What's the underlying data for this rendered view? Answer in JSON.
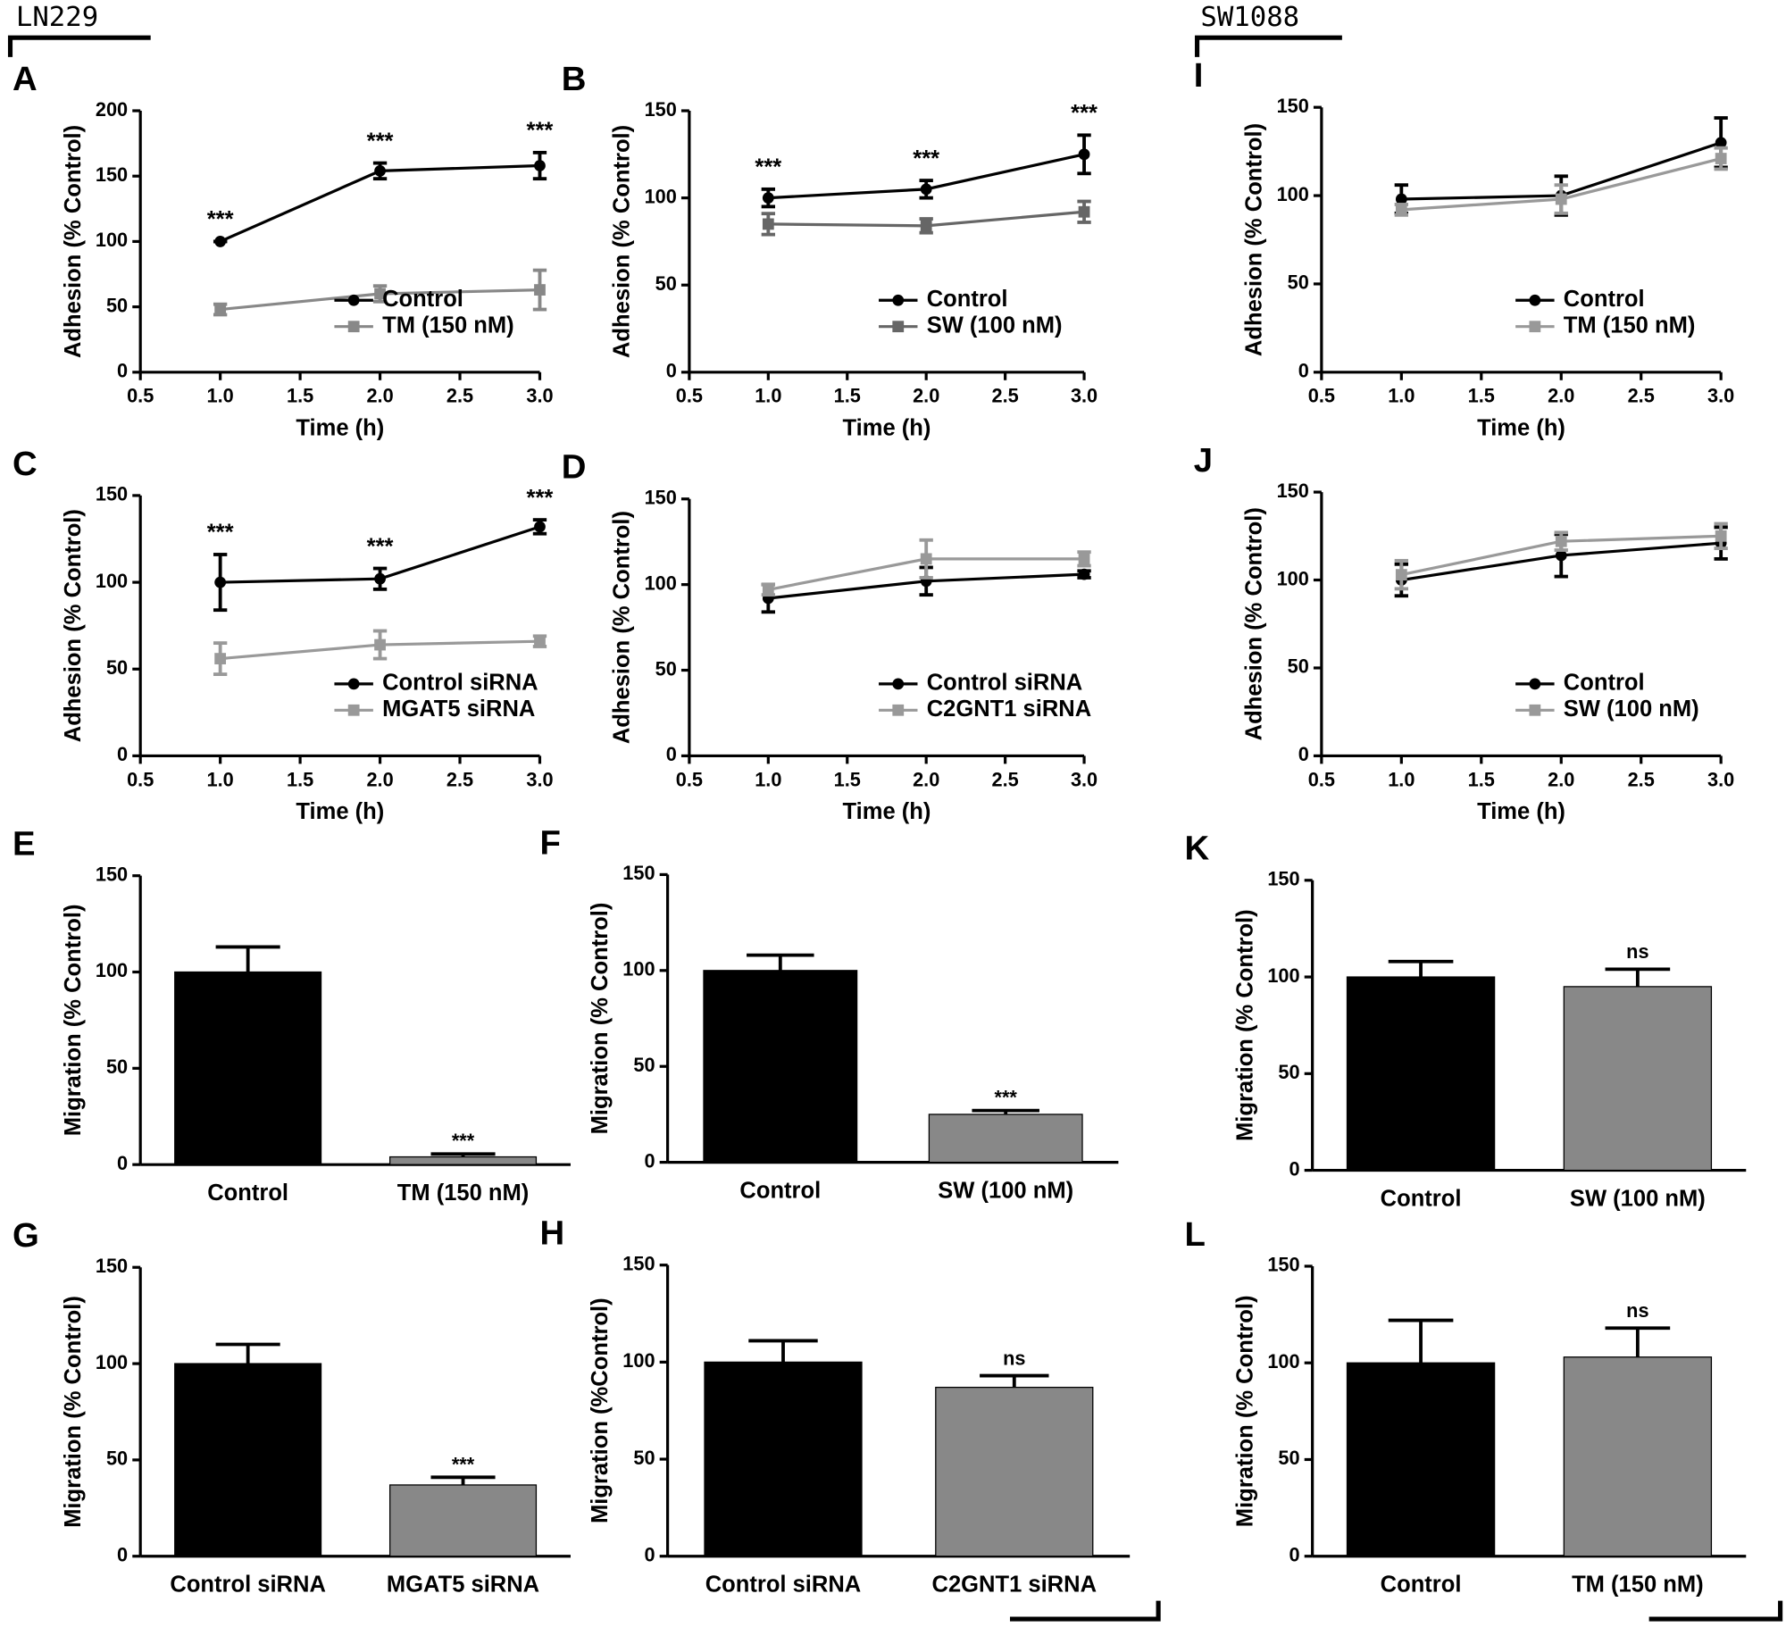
{
  "groups": [
    "LN229",
    "SW1088"
  ],
  "chart_data": [
    {
      "panel": "A",
      "type": "line",
      "xlabel": "Time (h)",
      "ylabel": "Adhesion (% Control)",
      "legend": "lower right",
      "x": [
        1,
        2,
        3
      ],
      "xlim": [
        0.5,
        3
      ],
      "xticks": [
        0.5,
        {
          "value": 1,
          "label": "1.0"
        },
        1.5,
        {
          "value": 2,
          "label": "2.0"
        },
        2.5,
        {
          "value": 3,
          "label": "3.0"
        }
      ],
      "ylim": [
        0,
        200
      ],
      "yticks": [
        0,
        50,
        100,
        150,
        200
      ],
      "annotations": [
        "***",
        "***",
        "***"
      ],
      "series": [
        {
          "name": "Control",
          "color": "#000000",
          "values": [
            100,
            154,
            158
          ],
          "errors": [
            0,
            6,
            10
          ]
        },
        {
          "name": "TM (150 nM)",
          "color": "#888888",
          "values": [
            48,
            60,
            63
          ],
          "errors": [
            4,
            6,
            15
          ]
        }
      ]
    },
    {
      "panel": "B",
      "type": "line",
      "xlabel": "Time (h)",
      "ylabel": "Adhesion (% Control)",
      "legend": "lower right",
      "x": [
        1,
        2,
        3
      ],
      "xlim": [
        0.5,
        3
      ],
      "xticks": [
        0.5,
        {
          "value": 1,
          "label": "1.0"
        },
        1.5,
        {
          "value": 2,
          "label": "2.0"
        },
        2.5,
        {
          "value": 3,
          "label": "3.0"
        }
      ],
      "ylim": [
        0,
        150
      ],
      "yticks": [
        0,
        50,
        100,
        150
      ],
      "annotations": [
        "***",
        "***",
        "***"
      ],
      "series": [
        {
          "name": "Control",
          "color": "#000000",
          "values": [
            100,
            105,
            125
          ],
          "errors": [
            5,
            5,
            11
          ]
        },
        {
          "name": "SW (100 nM)",
          "color": "#666666",
          "values": [
            85,
            84,
            92
          ],
          "errors": [
            6,
            4,
            6
          ]
        }
      ]
    },
    {
      "panel": "I",
      "type": "line",
      "xlabel": "Time (h)",
      "ylabel": "Adhesion (% Control)",
      "legend": "lower right",
      "x": [
        1,
        2,
        3
      ],
      "xlim": [
        0.5,
        3
      ],
      "xticks": [
        0.5,
        {
          "value": 1,
          "label": "1.0"
        },
        1.5,
        {
          "value": 2,
          "label": "2.0"
        },
        2.5,
        {
          "value": 3,
          "label": "3.0"
        }
      ],
      "ylim": [
        0,
        150
      ],
      "yticks": [
        0,
        50,
        100,
        150
      ],
      "series": [
        {
          "name": "Control",
          "color": "#000000",
          "values": [
            98,
            100,
            130
          ],
          "errors": [
            8,
            11,
            14
          ]
        },
        {
          "name": "TM (150 nM)",
          "color": "#999999",
          "values": [
            92,
            98,
            121
          ],
          "errors": [
            3,
            8,
            6
          ]
        }
      ]
    },
    {
      "panel": "C",
      "type": "line",
      "xlabel": "Time (h)",
      "ylabel": "Adhesion (% Control)",
      "legend": "lower right",
      "x": [
        1,
        2,
        3
      ],
      "xlim": [
        0.5,
        3
      ],
      "xticks": [
        0.5,
        {
          "value": 1,
          "label": "1.0"
        },
        1.5,
        {
          "value": 2,
          "label": "2.0"
        },
        2.5,
        {
          "value": 3,
          "label": "3.0"
        }
      ],
      "ylim": [
        0,
        150
      ],
      "yticks": [
        0,
        50,
        100,
        150
      ],
      "annotations": [
        "***",
        "***",
        "***"
      ],
      "series": [
        {
          "name": "Control siRNA",
          "color": "#000000",
          "values": [
            100,
            102,
            132
          ],
          "errors": [
            16,
            6,
            4
          ]
        },
        {
          "name": "MGAT5 siRNA",
          "color": "#999999",
          "values": [
            56,
            64,
            66
          ],
          "errors": [
            9,
            8,
            3
          ]
        }
      ]
    },
    {
      "panel": "D",
      "type": "line",
      "xlabel": "Time (h)",
      "ylabel": "Adhesion (% Control)",
      "legend": "lower right",
      "x": [
        1,
        2,
        3
      ],
      "xlim": [
        0.5,
        3
      ],
      "xticks": [
        0.5,
        {
          "value": 1,
          "label": "1.0"
        },
        1.5,
        {
          "value": 2,
          "label": "2.0"
        },
        2.5,
        {
          "value": 3,
          "label": "3.0"
        }
      ],
      "ylim": [
        0,
        150
      ],
      "yticks": [
        0,
        50,
        100,
        150
      ],
      "series": [
        {
          "name": "Control siRNA",
          "color": "#000000",
          "values": [
            92,
            102,
            106
          ],
          "errors": [
            8,
            8,
            2
          ]
        },
        {
          "name": "C2GNT1 siRNA",
          "color": "#999999",
          "values": [
            97,
            115,
            115
          ],
          "errors": [
            3,
            11,
            4
          ]
        }
      ]
    },
    {
      "panel": "J",
      "type": "line",
      "xlabel": "Time (h)",
      "ylabel": "Adhesion (% Control)",
      "legend": "lower right",
      "x": [
        1,
        2,
        3
      ],
      "xlim": [
        0.5,
        3
      ],
      "xticks": [
        0.5,
        {
          "value": 1,
          "label": "1.0"
        },
        1.5,
        {
          "value": 2,
          "label": "2.0"
        },
        2.5,
        {
          "value": 3,
          "label": "3.0"
        }
      ],
      "ylim": [
        0,
        150
      ],
      "yticks": [
        0,
        50,
        100,
        150
      ],
      "series": [
        {
          "name": "Control",
          "color": "#000000",
          "values": [
            100,
            114,
            121
          ],
          "errors": [
            9,
            12,
            9
          ]
        },
        {
          "name": "SW (100 nM)",
          "color": "#999999",
          "values": [
            103,
            122,
            125
          ],
          "errors": [
            8,
            5,
            7
          ]
        }
      ]
    },
    {
      "panel": "E",
      "type": "bar",
      "ylabel": "Migration (% Control)",
      "categories": [
        "Control",
        "TM (150 nM)"
      ],
      "values": [
        100,
        4
      ],
      "errors": [
        13,
        1.5
      ],
      "colors": [
        "#000000",
        "#888888"
      ],
      "annotations": [
        null,
        "***"
      ],
      "ylim": [
        0,
        150
      ],
      "yticks": [
        0,
        50,
        100,
        150
      ]
    },
    {
      "panel": "F",
      "type": "bar",
      "ylabel": "Migration (% Control)",
      "categories": [
        "Control",
        "SW (100 nM)"
      ],
      "values": [
        100,
        25
      ],
      "errors": [
        8,
        2
      ],
      "colors": [
        "#000000",
        "#888888"
      ],
      "annotations": [
        null,
        "***"
      ],
      "ylim": [
        0,
        150
      ],
      "yticks": [
        0,
        50,
        100,
        150
      ]
    },
    {
      "panel": "K",
      "type": "bar",
      "ylabel": "Migration (% Control)",
      "categories": [
        "Control",
        "SW (100 nM)"
      ],
      "values": [
        100,
        95
      ],
      "errors": [
        8,
        9
      ],
      "colors": [
        "#000000",
        "#888888"
      ],
      "annotations": [
        null,
        "ns"
      ],
      "ylim": [
        0,
        150
      ],
      "yticks": [
        0,
        50,
        100,
        150
      ]
    },
    {
      "panel": "G",
      "type": "bar",
      "ylabel": "Migration (% Control)",
      "categories": [
        "Control siRNA",
        "MGAT5 siRNA"
      ],
      "values": [
        100,
        37
      ],
      "errors": [
        10,
        4
      ],
      "colors": [
        "#000000",
        "#888888"
      ],
      "annotations": [
        null,
        "***"
      ],
      "ylim": [
        0,
        150
      ],
      "yticks": [
        0,
        50,
        100,
        150
      ]
    },
    {
      "panel": "H",
      "type": "bar",
      "ylabel": "Migration (%Control)",
      "categories": [
        "Control siRNA",
        "C2GNT1 siRNA"
      ],
      "values": [
        100,
        87
      ],
      "errors": [
        11,
        6
      ],
      "colors": [
        "#000000",
        "#888888"
      ],
      "annotations": [
        null,
        "ns"
      ],
      "ylim": [
        0,
        150
      ],
      "yticks": [
        0,
        50,
        100,
        150
      ]
    },
    {
      "panel": "L",
      "type": "bar",
      "ylabel": "Migration (% Control)",
      "categories": [
        "Control",
        "TM (150 nM)"
      ],
      "values": [
        100,
        103
      ],
      "errors": [
        22,
        15
      ],
      "colors": [
        "#000000",
        "#888888"
      ],
      "annotations": [
        null,
        "ns"
      ],
      "ylim": [
        0,
        150
      ],
      "yticks": [
        0,
        50,
        100,
        150
      ]
    }
  ]
}
